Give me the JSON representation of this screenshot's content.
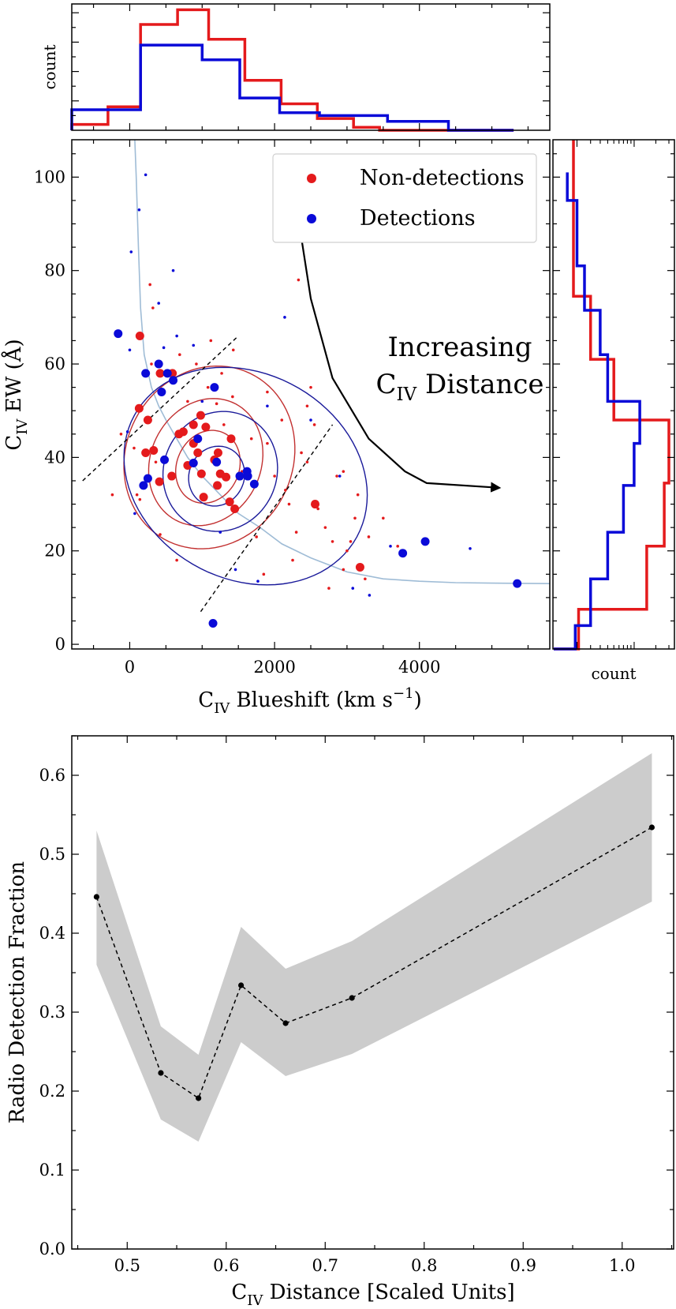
{
  "chart_data": [
    {
      "id": "scatter",
      "type": "scatter",
      "xlabel": {
        "main": "C",
        "sub": "IV",
        "rest": " Blueshift (km s",
        "sup": "−1",
        "tail": ")"
      },
      "ylabel": {
        "main": "C",
        "sub": "IV",
        "rest": " EW (Å)"
      },
      "xlim": [
        -800,
        5800
      ],
      "ylim": [
        -1,
        108
      ],
      "xticks": [
        0,
        2000,
        4000
      ],
      "yticks": [
        0,
        20,
        40,
        60,
        80,
        100
      ],
      "grid": false,
      "legend": {
        "placement": "top-right",
        "entries": [
          {
            "name": "Non-detections",
            "color": "#e41a1c"
          },
          {
            "name": "Detections",
            "color": "#0a0ad8"
          }
        ]
      },
      "annotation": {
        "line1": "Increasing",
        "line2_main": "C",
        "line2_sub": "IV",
        "line2_rest": " Distance"
      },
      "colors": {
        "non_detection": "#e41a1c",
        "detection": "#0a0ad8",
        "best_fit_curve": "#9fbcd6",
        "arrow": "#000000"
      },
      "curve": {
        "x": [
          70,
          90,
          120,
          150,
          200,
          300,
          400,
          500,
          650,
          800,
          1000,
          1250,
          1500,
          1800,
          2100,
          2500,
          3000,
          3500,
          4000,
          4500,
          5000,
          5800
        ],
        "y": [
          108,
          100,
          85,
          72,
          62,
          55,
          51,
          48,
          44,
          40,
          36,
          32,
          28,
          25,
          21.5,
          18.5,
          15.5,
          14,
          13.5,
          13.2,
          13.1,
          13
        ]
      },
      "dividers": [
        {
          "x": [
            -650,
            1500
          ],
          "y": [
            35,
            66
          ]
        },
        {
          "x": [
            980,
            2800
          ],
          "y": [
            7,
            47
          ]
        }
      ],
      "arrow": {
        "x": [
          2380,
          2500,
          2800,
          3300,
          3800,
          4100,
          5100
        ],
        "y": [
          86,
          74,
          57,
          44,
          37,
          34.5,
          33.5
        ]
      },
      "non_detections_large": [
        [
          140,
          66
        ],
        [
          130,
          50.5
        ],
        [
          220,
          41
        ],
        [
          330,
          41.5
        ],
        [
          250,
          48
        ],
        [
          420,
          58
        ],
        [
          590,
          58
        ],
        [
          880,
          47
        ],
        [
          1050,
          46.5
        ],
        [
          680,
          45
        ],
        [
          740,
          45.5
        ],
        [
          880,
          43
        ],
        [
          940,
          41
        ],
        [
          980,
          49
        ],
        [
          1220,
          41
        ],
        [
          1400,
          44
        ],
        [
          1330,
          35.8
        ],
        [
          1210,
          34
        ],
        [
          990,
          36.5
        ],
        [
          800,
          38.3
        ],
        [
          1170,
          39.5
        ],
        [
          1250,
          36.5
        ],
        [
          1380,
          30.5
        ],
        [
          1450,
          29
        ],
        [
          1020,
          31.5
        ],
        [
          580,
          36
        ],
        [
          410,
          34.8
        ],
        [
          2560,
          30
        ],
        [
          3180,
          16.5
        ]
      ],
      "non_detections_small": [
        [
          -240,
          32
        ],
        [
          -120,
          45
        ],
        [
          60,
          42
        ],
        [
          100,
          32
        ],
        [
          140,
          31
        ],
        [
          280,
          77
        ],
        [
          320,
          72
        ],
        [
          300,
          60
        ],
        [
          360,
          39
        ],
        [
          420,
          23.5
        ],
        [
          650,
          18
        ],
        [
          690,
          62
        ],
        [
          800,
          52
        ],
        [
          920,
          60
        ],
        [
          1080,
          55
        ],
        [
          1120,
          65
        ],
        [
          1200,
          51.5
        ],
        [
          1270,
          58
        ],
        [
          1300,
          47
        ],
        [
          1420,
          53
        ],
        [
          1430,
          63
        ],
        [
          1550,
          37
        ],
        [
          1680,
          44
        ],
        [
          1750,
          23
        ],
        [
          1850,
          15
        ],
        [
          1900,
          43
        ],
        [
          1900,
          54
        ],
        [
          2000,
          36
        ],
        [
          2100,
          48
        ],
        [
          2150,
          33
        ],
        [
          2200,
          30
        ],
        [
          2250,
          18
        ],
        [
          2300,
          24
        ],
        [
          2330,
          78
        ],
        [
          2370,
          41
        ],
        [
          2450,
          39
        ],
        [
          2450,
          51
        ],
        [
          2500,
          55
        ],
        [
          2550,
          47
        ],
        [
          2600,
          29
        ],
        [
          2700,
          25
        ],
        [
          2750,
          12
        ],
        [
          2800,
          22
        ],
        [
          2860,
          36
        ],
        [
          2950,
          37
        ],
        [
          2950,
          16
        ],
        [
          3000,
          20
        ],
        [
          3050,
          22
        ],
        [
          3110,
          27
        ],
        [
          3150,
          32
        ],
        [
          3250,
          14
        ],
        [
          3300,
          23
        ],
        [
          3500,
          27
        ],
        [
          3700,
          21
        ]
      ],
      "detections_large": [
        [
          -160,
          66.5
        ],
        [
          400,
          60
        ],
        [
          220,
          58
        ],
        [
          520,
          58
        ],
        [
          600,
          56.5
        ],
        [
          440,
          54
        ],
        [
          1170,
          55
        ],
        [
          940,
          44
        ],
        [
          480,
          39.5
        ],
        [
          880,
          38.8
        ],
        [
          1200,
          39
        ],
        [
          250,
          35.5
        ],
        [
          190,
          34
        ],
        [
          1520,
          36
        ],
        [
          1630,
          36
        ],
        [
          1620,
          37
        ],
        [
          1720,
          34.3
        ],
        [
          1150,
          4.5
        ],
        [
          3770,
          19.5
        ],
        [
          4080,
          22
        ],
        [
          5350,
          13
        ]
      ],
      "detections_small": [
        [
          220,
          100.5
        ],
        [
          130,
          93
        ],
        [
          20,
          84
        ],
        [
          0,
          63
        ],
        [
          400,
          73
        ],
        [
          470,
          63.5
        ],
        [
          600,
          80
        ],
        [
          650,
          66
        ],
        [
          880,
          64
        ],
        [
          1000,
          52
        ],
        [
          1250,
          24
        ],
        [
          1460,
          16
        ],
        [
          1770,
          13.5
        ],
        [
          1900,
          51
        ],
        [
          2140,
          70
        ],
        [
          2500,
          48
        ],
        [
          2900,
          36
        ],
        [
          3080,
          12
        ],
        [
          3310,
          10.5
        ],
        [
          3600,
          21
        ],
        [
          4700,
          20.5
        ],
        [
          -30,
          45.5
        ],
        [
          70,
          28
        ]
      ],
      "contours_red": [
        {
          "cx": 1080,
          "cy": 38,
          "rx": 430,
          "ry": 8,
          "rot": -0.42
        },
        {
          "cx": 1050,
          "cy": 39,
          "rx": 760,
          "ry": 14,
          "rot": -0.45
        },
        {
          "cx": 1100,
          "cy": 40,
          "rx": 1150,
          "ry": 20,
          "rot": -0.48
        }
      ],
      "contours_blue": [
        {
          "cx": 1200,
          "cy": 36,
          "rx": 380,
          "ry": 6.5,
          "rot": -0.42
        },
        {
          "cx": 1250,
          "cy": 37,
          "rx": 780,
          "ry": 13,
          "rot": -0.45
        },
        {
          "cx": 1600,
          "cy": 36,
          "rx": 1750,
          "ry": 22,
          "rot": -0.5
        }
      ]
    },
    {
      "id": "hist_top",
      "type": "histogram",
      "ylabel": "count",
      "xlim": [
        -800,
        5800
      ],
      "ylim": [
        0,
        43
      ],
      "non_detections": {
        "edges": [
          -800,
          -300,
          150,
          660,
          1090,
          1590,
          2090,
          2590,
          3090,
          3450,
          5300
        ],
        "counts": [
          2,
          8,
          36,
          41,
          31,
          17,
          9,
          4,
          1,
          0
        ]
      },
      "detections": {
        "edges": [
          -800,
          150,
          1000,
          1520,
          2070,
          2620,
          3560,
          4400,
          5300
        ],
        "counts": [
          7,
          29,
          24,
          11,
          6,
          5,
          3,
          0
        ]
      }
    },
    {
      "id": "hist_right",
      "type": "histogram",
      "xlabel": "count",
      "ylim": [
        -1,
        108
      ],
      "non_detections": {
        "edges": [
          -1,
          7.5,
          21,
          34.5,
          48,
          61,
          74.5,
          108
        ],
        "counts": [
          1.1,
          15,
          26,
          30,
          5,
          2,
          0.8
        ]
      },
      "detections": {
        "edges": [
          -1,
          4,
          14,
          24,
          34,
          43,
          52,
          62,
          71.5,
          81,
          95,
          101
        ],
        "counts": [
          0.9,
          2,
          4,
          7,
          10,
          12,
          4,
          3,
          1.5,
          1,
          0.5
        ]
      }
    },
    {
      "id": "fraction",
      "type": "line",
      "xlabel": {
        "main": "C",
        "sub": "IV",
        "rest": " Distance [Scaled Units]"
      },
      "ylabel": "Radio Detection Fraction",
      "xlim": [
        0.444,
        1.052
      ],
      "ylim": [
        0.0,
        0.65
      ],
      "xticks": [
        0.5,
        0.6,
        0.7,
        0.8,
        0.9,
        1.0
      ],
      "yticks": [
        0.0,
        0.1,
        0.2,
        0.3,
        0.4,
        0.5,
        0.6
      ],
      "grid": false,
      "series": [
        {
          "x": [
            0.469,
            0.534,
            0.572,
            0.615,
            0.66,
            0.727,
            1.03
          ],
          "y": [
            0.446,
            0.223,
            0.191,
            0.334,
            0.286,
            0.318,
            0.534
          ],
          "upper": [
            0.53,
            0.282,
            0.246,
            0.408,
            0.355,
            0.39,
            0.628
          ],
          "lower": [
            0.36,
            0.164,
            0.136,
            0.262,
            0.219,
            0.247,
            0.44
          ]
        }
      ],
      "colors": {
        "band": "#cccccc",
        "line": "#000000"
      }
    }
  ]
}
